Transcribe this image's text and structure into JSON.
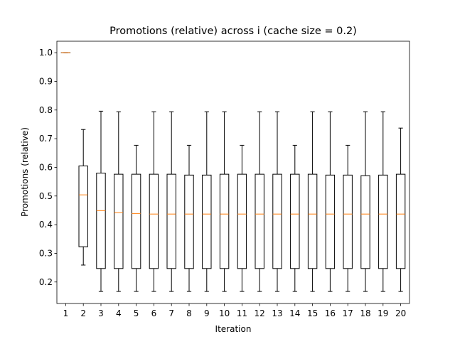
{
  "chart_data": {
    "type": "boxplot",
    "title": "Promotions (relative) across i (cache size = 0.2)",
    "xlabel": "Iteration",
    "ylabel": "Promotions (relative)",
    "categories": [
      "1",
      "2",
      "3",
      "4",
      "5",
      "6",
      "7",
      "8",
      "9",
      "10",
      "11",
      "12",
      "13",
      "14",
      "15",
      "16",
      "17",
      "18",
      "19",
      "20"
    ],
    "ylim": [
      0.125,
      1.04
    ],
    "yticks": [
      0.2,
      0.3,
      0.4,
      0.5,
      0.6,
      0.7,
      0.8,
      0.9,
      1.0
    ],
    "ytick_labels": [
      "0.2",
      "0.3",
      "0.4",
      "0.5",
      "0.6",
      "0.7",
      "0.8",
      "0.9",
      "1.0"
    ],
    "grid": false,
    "box_color": "#000000",
    "median_color": "#ff7f0e",
    "boxes": [
      {
        "whisker_low": 1.0,
        "q1": 1.0,
        "median": 1.0,
        "q3": 1.0,
        "whisker_high": 1.0
      },
      {
        "whisker_low": 0.259,
        "q1": 0.323,
        "median": 0.504,
        "q3": 0.605,
        "whisker_high": 0.732
      },
      {
        "whisker_low": 0.167,
        "q1": 0.247,
        "median": 0.449,
        "q3": 0.58,
        "whisker_high": 0.796
      },
      {
        "whisker_low": 0.167,
        "q1": 0.247,
        "median": 0.442,
        "q3": 0.576,
        "whisker_high": 0.794
      },
      {
        "whisker_low": 0.167,
        "q1": 0.247,
        "median": 0.439,
        "q3": 0.576,
        "whisker_high": 0.677
      },
      {
        "whisker_low": 0.167,
        "q1": 0.247,
        "median": 0.437,
        "q3": 0.576,
        "whisker_high": 0.794
      },
      {
        "whisker_low": 0.167,
        "q1": 0.247,
        "median": 0.437,
        "q3": 0.576,
        "whisker_high": 0.794
      },
      {
        "whisker_low": 0.167,
        "q1": 0.247,
        "median": 0.437,
        "q3": 0.573,
        "whisker_high": 0.677
      },
      {
        "whisker_low": 0.167,
        "q1": 0.247,
        "median": 0.437,
        "q3": 0.573,
        "whisker_high": 0.794
      },
      {
        "whisker_low": 0.167,
        "q1": 0.247,
        "median": 0.437,
        "q3": 0.576,
        "whisker_high": 0.794
      },
      {
        "whisker_low": 0.167,
        "q1": 0.247,
        "median": 0.437,
        "q3": 0.576,
        "whisker_high": 0.677
      },
      {
        "whisker_low": 0.167,
        "q1": 0.247,
        "median": 0.437,
        "q3": 0.576,
        "whisker_high": 0.794
      },
      {
        "whisker_low": 0.167,
        "q1": 0.247,
        "median": 0.437,
        "q3": 0.576,
        "whisker_high": 0.794
      },
      {
        "whisker_low": 0.167,
        "q1": 0.247,
        "median": 0.437,
        "q3": 0.576,
        "whisker_high": 0.677
      },
      {
        "whisker_low": 0.167,
        "q1": 0.247,
        "median": 0.437,
        "q3": 0.576,
        "whisker_high": 0.794
      },
      {
        "whisker_low": 0.167,
        "q1": 0.247,
        "median": 0.437,
        "q3": 0.573,
        "whisker_high": 0.794
      },
      {
        "whisker_low": 0.167,
        "q1": 0.247,
        "median": 0.437,
        "q3": 0.573,
        "whisker_high": 0.677
      },
      {
        "whisker_low": 0.167,
        "q1": 0.247,
        "median": 0.437,
        "q3": 0.571,
        "whisker_high": 0.794
      },
      {
        "whisker_low": 0.167,
        "q1": 0.247,
        "median": 0.437,
        "q3": 0.573,
        "whisker_high": 0.794
      },
      {
        "whisker_low": 0.167,
        "q1": 0.247,
        "median": 0.437,
        "q3": 0.576,
        "whisker_high": 0.737
      }
    ]
  }
}
